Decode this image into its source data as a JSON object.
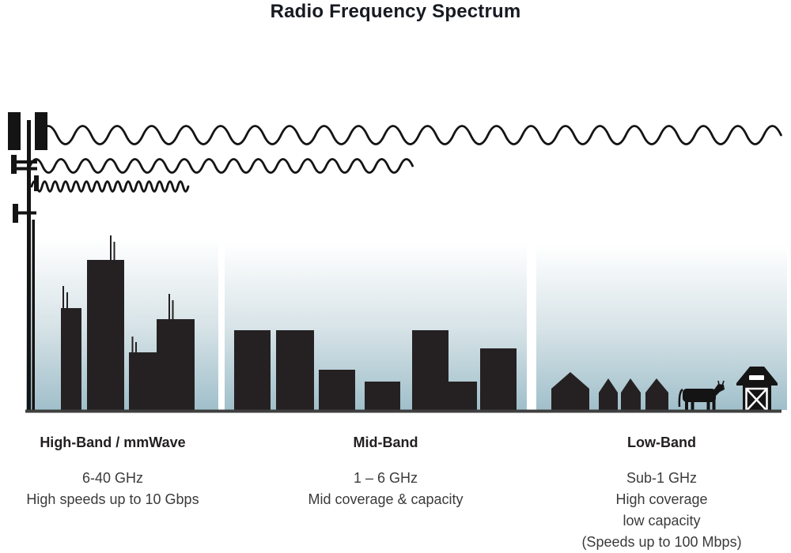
{
  "title": "Radio Frequency Spectrum",
  "bands": [
    {
      "name": "High-Band / mmWave",
      "lines": [
        "6-40 GHz",
        "High speeds up to 10 Gbps"
      ]
    },
    {
      "name": "Mid-Band",
      "lines": [
        "1 – 6 GHz",
        "Mid coverage & capacity"
      ]
    },
    {
      "name": "Low-Band",
      "lines": [
        "Sub-1 GHz",
        "High coverage",
        "low capacity",
        "(Speeds up to 100 Mbps)"
      ]
    }
  ],
  "icons": {
    "tower": "cell-tower-icon",
    "waves": [
      "long-wavelength-wave-icon",
      "medium-wavelength-wave-icon",
      "short-wavelength-wave-icon"
    ],
    "high_band_scene": "city-skyline-icon",
    "mid_band_scene": "town-buildings-icon",
    "low_band_scene": [
      "rural-houses-icon",
      "cow-icon",
      "barn-icon"
    ]
  },
  "colors": {
    "ink": "#141414",
    "building": "#252122",
    "sky_top": "#ffffff",
    "sky_mid": "#d8e4e8",
    "sky_bottom": "#a0bfca",
    "ground": "#3f3f3f",
    "title": "#161a21",
    "band_name": "#242021",
    "band_text": "#3b3b3b"
  }
}
